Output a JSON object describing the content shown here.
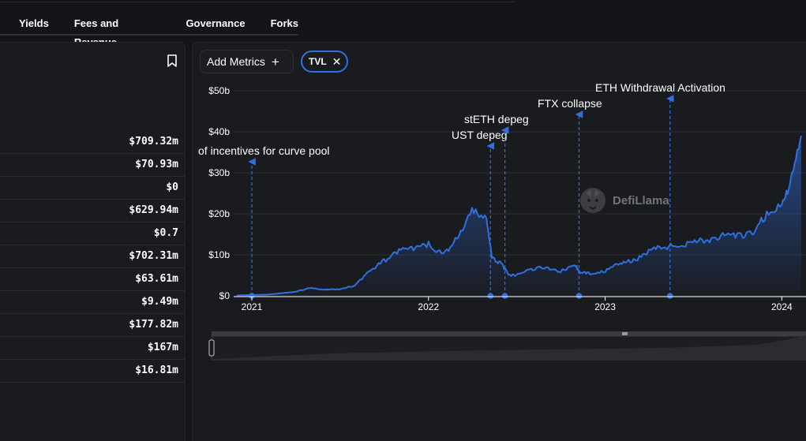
{
  "tabs": [
    "Yields",
    "Fees and Revenue",
    "Governance",
    "Forks"
  ],
  "left_panel": {
    "values": [
      "$709.32m",
      "$70.93m",
      "$0",
      "$629.94m",
      "$0.7",
      "$702.31m",
      "$63.61m",
      "$9.49m",
      "$177.82m",
      "$167m",
      "$16.81m"
    ]
  },
  "toolbar": {
    "add_metrics_label": "Add Metrics",
    "add_icon": "plus-icon",
    "tvl_label": "TVL",
    "remove_icon": "close-icon"
  },
  "watermark": "DefiLlama",
  "colors": {
    "line": "#2f6fe0",
    "background": "#1a1b1f",
    "page": "#141518"
  },
  "chart_data": {
    "type": "area",
    "series": [
      {
        "name": "TVL",
        "points": [
          [
            "2020-12-01",
            0.1
          ],
          [
            "2021-01-01",
            0.2
          ],
          [
            "2021-02-01",
            0.3
          ],
          [
            "2021-03-01",
            0.6
          ],
          [
            "2021-04-01",
            1.0
          ],
          [
            "2021-05-01",
            1.9
          ],
          [
            "2021-06-01",
            1.5
          ],
          [
            "2021-07-01",
            1.6
          ],
          [
            "2021-08-01",
            2.5
          ],
          [
            "2021-09-01",
            6.0
          ],
          [
            "2021-10-01",
            8.5
          ],
          [
            "2021-11-01",
            11.0
          ],
          [
            "2021-12-01",
            11.5
          ],
          [
            "2022-01-01",
            12.5
          ],
          [
            "2022-02-01",
            10.0
          ],
          [
            "2022-03-01",
            14.0
          ],
          [
            "2022-04-01",
            20.5
          ],
          [
            "2022-05-01",
            19.0
          ],
          [
            "2022-05-12",
            9.0
          ],
          [
            "2022-06-01",
            8.0
          ],
          [
            "2022-06-15",
            5.0
          ],
          [
            "2022-07-01",
            5.0
          ],
          [
            "2022-08-01",
            6.5
          ],
          [
            "2022-09-01",
            7.0
          ],
          [
            "2022-10-01",
            6.0
          ],
          [
            "2022-11-01",
            7.5
          ],
          [
            "2022-11-10",
            5.5
          ],
          [
            "2022-12-01",
            5.5
          ],
          [
            "2023-01-01",
            6.0
          ],
          [
            "2023-02-01",
            8.0
          ],
          [
            "2023-03-01",
            8.5
          ],
          [
            "2023-04-01",
            11.0
          ],
          [
            "2023-05-01",
            12.0
          ],
          [
            "2023-06-01",
            12.0
          ],
          [
            "2023-07-01",
            13.5
          ],
          [
            "2023-08-01",
            13.5
          ],
          [
            "2023-09-01",
            14.5
          ],
          [
            "2023-10-01",
            14.5
          ],
          [
            "2023-11-01",
            15.0
          ],
          [
            "2023-12-01",
            20.0
          ],
          [
            "2024-01-01",
            22.0
          ],
          [
            "2024-01-20",
            28.0
          ],
          [
            "2024-02-10",
            39.0
          ]
        ]
      }
    ],
    "ylim": [
      0,
      50
    ],
    "y_ticks": [
      "$0",
      "$10b",
      "$20b",
      "$30b",
      "$40b",
      "$50b"
    ],
    "y_tick_values": [
      0,
      10,
      20,
      30,
      40,
      50
    ],
    "x_ticks": [
      "2021",
      "2022",
      "2023",
      "2024"
    ],
    "x_tick_dates": [
      "2021-01-01",
      "2022-01-01",
      "2023-01-01",
      "2024-01-01"
    ],
    "x_range": [
      "2020-12-01",
      "2024-02-20"
    ],
    "annotations": [
      {
        "date": "2021-01-01",
        "label": "of incentives for curve pool"
      },
      {
        "date": "2022-05-09",
        "label": "UST depeg"
      },
      {
        "date": "2022-06-08",
        "label": "stETH depeg"
      },
      {
        "date": "2022-11-08",
        "label": "FTX collapse"
      },
      {
        "date": "2023-05-15",
        "label": "ETH Withdrawal Activation"
      }
    ],
    "grid": true
  }
}
